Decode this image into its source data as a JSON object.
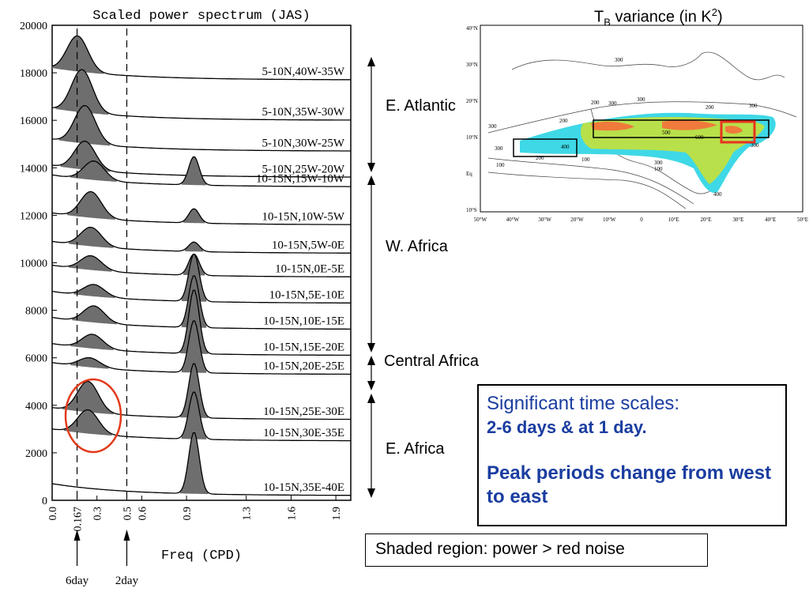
{
  "chart_data": {
    "type": "area",
    "title": "Scaled power spectrum (JAS)",
    "xlabel": "Freq (CPD)",
    "ylabel": "",
    "xlim": [
      0.0,
      2.0
    ],
    "ylim": [
      0,
      20000
    ],
    "x_ticks": [
      "0.0",
      "0.167",
      "0.3",
      "0.5",
      "0.6",
      "0.9",
      "1.3",
      "1.6",
      "1.9"
    ],
    "x_tick_values": [
      0.0,
      0.167,
      0.3,
      0.5,
      0.6,
      0.9,
      1.3,
      1.6,
      1.9
    ],
    "y_ticks": [
      0,
      2000,
      4000,
      6000,
      8000,
      10000,
      12000,
      14000,
      16000,
      18000,
      20000
    ],
    "reference_lines": [
      {
        "x": 0.167,
        "label": "6day"
      },
      {
        "x": 0.5,
        "label": "2day"
      }
    ],
    "series": [
      {
        "label": "5-10N,40W-35W",
        "baseline": 17700,
        "peak_low": 1500,
        "peak_low_freq": 0.17,
        "peak_diurnal": 0
      },
      {
        "label": "5-10N,35W-30W",
        "baseline": 16000,
        "peak_low": 1800,
        "peak_low_freq": 0.2,
        "peak_diurnal": 0
      },
      {
        "label": "5-10N,30W-25W",
        "baseline": 14700,
        "peak_low": 1600,
        "peak_low_freq": 0.22,
        "peak_diurnal": 0
      },
      {
        "label": "5-10N,25W-20W",
        "baseline": 13600,
        "peak_low": 1200,
        "peak_low_freq": 0.22,
        "peak_diurnal": 0
      },
      {
        "label": "10-15N,15W-10W",
        "baseline": 13200,
        "peak_low": 800,
        "peak_low_freq": 0.28,
        "peak_diurnal": 1200
      },
      {
        "label": "10-15N,10W-5W",
        "baseline": 11600,
        "peak_low": 1100,
        "peak_low_freq": 0.26,
        "peak_diurnal": 600
      },
      {
        "label": "10-15N,5W-0E",
        "baseline": 10400,
        "peak_low": 800,
        "peak_low_freq": 0.26,
        "peak_diurnal": 400
      },
      {
        "label": "10-15N,0E-5E",
        "baseline": 9400,
        "peak_low": 600,
        "peak_low_freq": 0.26,
        "peak_diurnal": 900
      },
      {
        "label": "10-15N,5E-10E",
        "baseline": 8300,
        "peak_low": 500,
        "peak_low_freq": 0.28,
        "peak_diurnal": 2000
      },
      {
        "label": "10-15N,10E-15E",
        "baseline": 7200,
        "peak_low": 700,
        "peak_low_freq": 0.28,
        "peak_diurnal": 2200
      },
      {
        "label": "10-15N,15E-20E",
        "baseline": 6100,
        "peak_low": 600,
        "peak_low_freq": 0.27,
        "peak_diurnal": 2700
      },
      {
        "label": "10-15N,20E-25E",
        "baseline": 5300,
        "peak_low": 400,
        "peak_low_freq": 0.25,
        "peak_diurnal": 2200
      },
      {
        "label": "10-15N,25E-30E",
        "baseline": 3400,
        "peak_low": 1300,
        "peak_low_freq": 0.24,
        "peak_diurnal": 2300
      },
      {
        "label": "10-15N,30E-35E",
        "baseline": 2500,
        "peak_low": 1000,
        "peak_low_freq": 0.24,
        "peak_diurnal": 2000
      },
      {
        "label": "10-15N,35E-40E",
        "baseline": 200,
        "peak_low": 0,
        "peak_low_freq": 0.24,
        "peak_diurnal": 2600
      }
    ]
  },
  "panel": {
    "map_title_a": "T",
    "map_title_sub": "B",
    "map_title_b": " variance (in K",
    "map_title_sup": "2",
    "map_title_c": ")",
    "groups": {
      "e_atlantic": "E. Atlantic",
      "w_africa": "W. Africa",
      "central_africa": "Central Africa",
      "e_africa": "E. Africa"
    },
    "significant_title": "Significant time scales:",
    "significant_days": "2-6 days & at 1 day.",
    "peak_note": "Peak periods change from west to east",
    "shaded_note": "Shaded region: power > red noise"
  },
  "map": {
    "lat_labels": [
      "40°N",
      "30°N",
      "20°N",
      "10°N",
      "Eq",
      "10°S"
    ],
    "lon_labels": [
      "50°W",
      "40°W",
      "30°W",
      "20°W",
      "10°W",
      "0",
      "10°E",
      "20°E",
      "30°E",
      "40°E",
      "50°E"
    ],
    "contour_labels": [
      "300",
      "200",
      "300",
      "300",
      "200",
      "300",
      "200",
      "300",
      "500",
      "600",
      "300",
      "400",
      "300",
      "200",
      "100",
      "300",
      "100",
      "100",
      "400"
    ],
    "colors": {
      "low": "#3fd8e6",
      "mid": "#b8e04a",
      "high": "#f07a3c",
      "box_red": "#e8321e"
    }
  }
}
